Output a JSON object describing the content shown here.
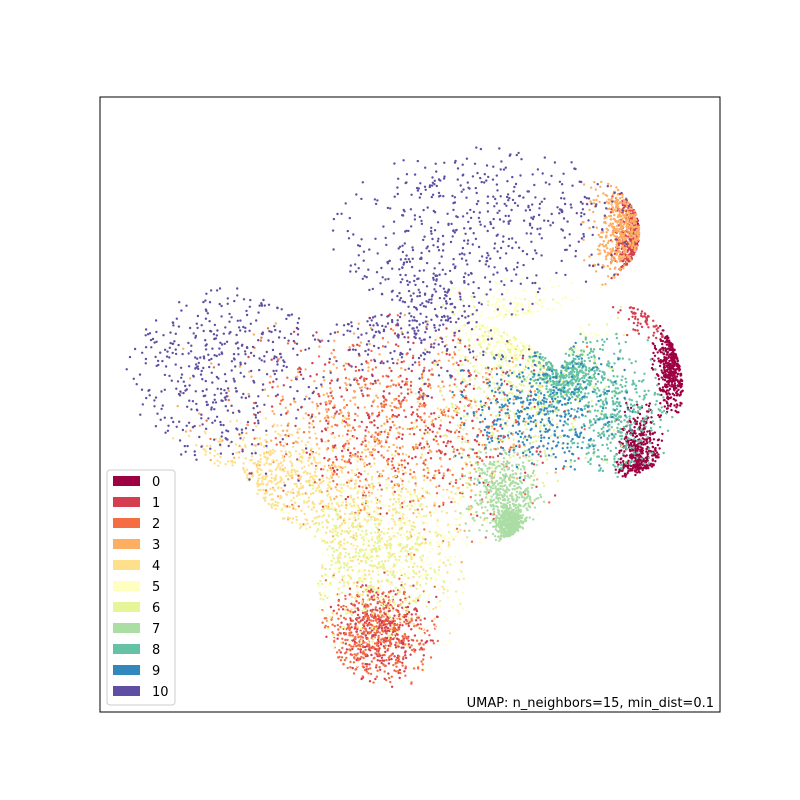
{
  "chart_data": {
    "type": "scatter",
    "title": "",
    "xlabel": "",
    "ylabel": "",
    "axes_ticks": "hidden",
    "grid": false,
    "legend_placement": "lower-left",
    "annotation": "UMAP: n_neighbors=15, min_dist=0.1",
    "x_range": [
      0,
      100
    ],
    "y_range": [
      0,
      100
    ],
    "point_count_approx": 10000,
    "colormap": "Spectral",
    "series": [
      {
        "name": "0",
        "color": "#9e0142",
        "clusters": [
          {
            "x": [
              90,
              95
            ],
            "y": [
              50,
              64
            ]
          },
          {
            "x": [
              84,
              90
            ],
            "y": [
              35,
              48
            ]
          },
          {
            "x": [
              87,
              92
            ],
            "y": [
              72,
              88
            ]
          }
        ]
      },
      {
        "name": "1",
        "color": "#d53e4f",
        "clusters": [
          {
            "x": [
              84,
              92
            ],
            "y": [
              65,
              86
            ]
          },
          {
            "x": [
              30,
              70
            ],
            "y": [
              35,
              60
            ]
          },
          {
            "x": [
              38,
              52
            ],
            "y": [
              6,
              20
            ]
          }
        ]
      },
      {
        "name": "2",
        "color": "#f46d43",
        "clusters": [
          {
            "x": [
              35,
              52
            ],
            "y": [
              5,
              20
            ]
          },
          {
            "x": [
              25,
              70
            ],
            "y": [
              30,
              62
            ]
          }
        ]
      },
      {
        "name": "3",
        "color": "#fdae61",
        "clusters": [
          {
            "x": [
              80,
              91
            ],
            "y": [
              70,
              88
            ]
          },
          {
            "x": [
              20,
              70
            ],
            "y": [
              30,
              60
            ]
          }
        ]
      },
      {
        "name": "4",
        "color": "#fee08b",
        "clusters": [
          {
            "x": [
              30,
              60
            ],
            "y": [
              15,
              45
            ]
          },
          {
            "x": [
              15,
              40
            ],
            "y": [
              30,
              45
            ]
          }
        ]
      },
      {
        "name": "5",
        "color": "#ffffbf",
        "clusters": [
          {
            "x": [
              30,
              65
            ],
            "y": [
              10,
              40
            ]
          },
          {
            "x": [
              58,
              78
            ],
            "y": [
              55,
              68
            ]
          }
        ]
      },
      {
        "name": "6",
        "color": "#e6f598",
        "clusters": [
          {
            "x": [
              55,
              80
            ],
            "y": [
              40,
              65
            ]
          },
          {
            "x": [
              30,
              55
            ],
            "y": [
              15,
              35
            ]
          }
        ]
      },
      {
        "name": "7",
        "color": "#abdda4",
        "clusters": [
          {
            "x": [
              60,
              70
            ],
            "y": [
              30,
              42
            ]
          },
          {
            "x": [
              64,
              68
            ],
            "y": [
              28,
              33
            ]
          }
        ]
      },
      {
        "name": "8",
        "color": "#66c2a5",
        "clusters": [
          {
            "x": [
              76,
              90
            ],
            "y": [
              38,
              58
            ]
          },
          {
            "x": [
              70,
              80
            ],
            "y": [
              50,
              60
            ]
          }
        ]
      },
      {
        "name": "9",
        "color": "#3288bd",
        "clusters": [
          {
            "x": [
              60,
              82
            ],
            "y": [
              40,
              58
            ]
          }
        ]
      },
      {
        "name": "10",
        "color": "#5e4fa2",
        "clusters": [
          {
            "x": [
              5,
              32
            ],
            "y": [
              40,
              72
            ]
          },
          {
            "x": [
              40,
              90
            ],
            "y": [
              70,
              93
            ]
          },
          {
            "x": [
              30,
              65
            ],
            "y": [
              55,
              75
            ]
          }
        ]
      }
    ]
  }
}
